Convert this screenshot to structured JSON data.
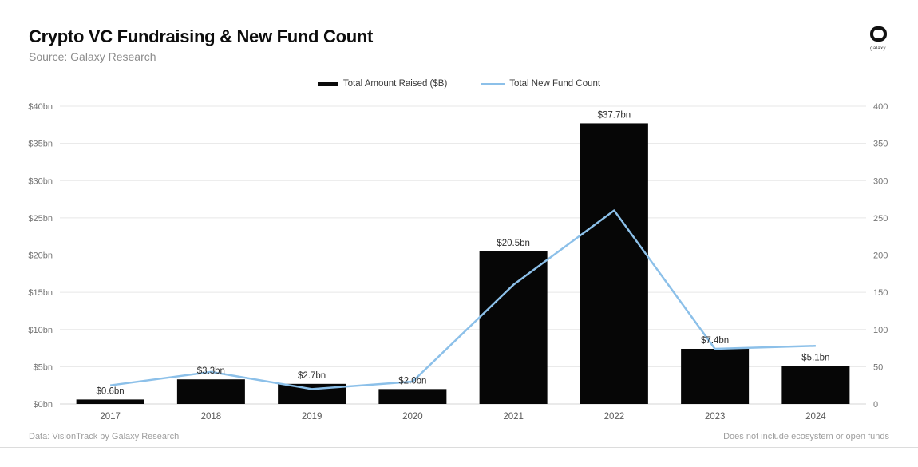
{
  "header": {
    "title": "Crypto VC Fundraising & New Fund Count",
    "subtitle": "Source: Galaxy Research"
  },
  "logo": {
    "word": "galaxy"
  },
  "legend": [
    {
      "label": "Total Amount Raised ($B)",
      "type": "bar"
    },
    {
      "label": "Total New Fund Count",
      "type": "line"
    }
  ],
  "footer": {
    "left": "Data: VisionTrack by Galaxy Research",
    "right": "Does not include ecosystem or open funds"
  },
  "colors": {
    "bar": "#060606",
    "line": "#8cc0e9",
    "gridline": "#e7e7e7",
    "axis_line": "#d6d6d6",
    "tick_text": "#757575",
    "bar_label_text": "#2e2e2e",
    "x_label_text": "#5a5a5a"
  },
  "chart_data": {
    "type": "bar+line combo",
    "title": "Crypto VC Fundraising & New Fund Count",
    "subtitle": "Source: Galaxy Research",
    "categories": [
      "2017",
      "2018",
      "2019",
      "2020",
      "2021",
      "2022",
      "2023",
      "2024"
    ],
    "series": [
      {
        "name": "Total Amount Raised ($B)",
        "type": "bar",
        "axis": "left",
        "values": [
          0.6,
          3.3,
          2.7,
          2.0,
          20.5,
          37.7,
          7.4,
          5.1
        ],
        "labels": [
          "$0.6bn",
          "$3.3bn",
          "$2.7bn",
          "$2.0bn",
          "$20.5bn",
          "$37.7bn",
          "$7.4bn",
          "$5.1bn"
        ]
      },
      {
        "name": "Total New Fund Count",
        "type": "line",
        "axis": "right",
        "values": [
          25,
          43,
          20,
          30,
          160,
          260,
          74,
          78
        ]
      }
    ],
    "left_axis": {
      "min": 0,
      "max": 40,
      "tick_labels": [
        "$0bn",
        "$5bn",
        "$10bn",
        "$15bn",
        "$20bn",
        "$25bn",
        "$30bn",
        "$35bn",
        "$40bn"
      ]
    },
    "right_axis": {
      "min": 0,
      "max": 400,
      "tick_labels": [
        "0",
        "50",
        "100",
        "150",
        "200",
        "250",
        "300",
        "350",
        "400"
      ]
    },
    "grid": "horizontal only",
    "legend_position": "top center"
  }
}
